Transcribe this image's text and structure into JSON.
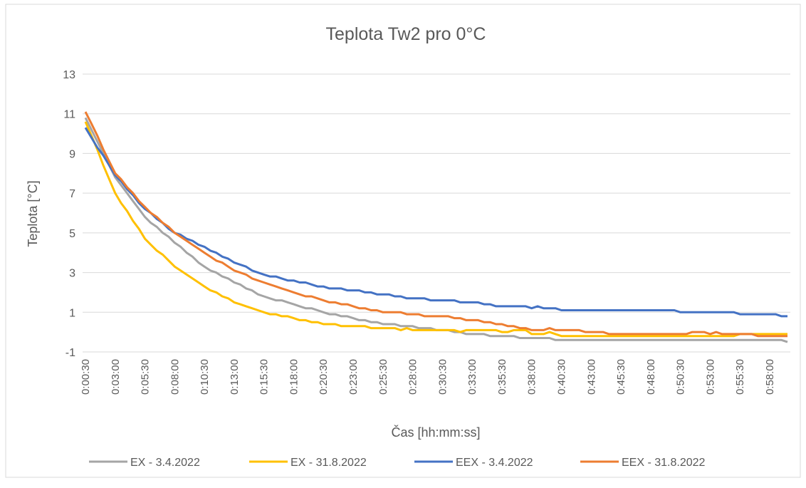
{
  "chart_data": {
    "type": "line",
    "title": "Teplota Tw2 pro  0°C",
    "x_label": "Čas [hh:mm:ss]",
    "y_label": "Teplota [°C]",
    "categories": [
      "0:00:30",
      null,
      null,
      null,
      null,
      "0:03:00",
      null,
      null,
      null,
      null,
      "0:05:30",
      null,
      null,
      null,
      null,
      "0:08:00",
      null,
      null,
      null,
      null,
      "0:10:30",
      null,
      null,
      null,
      null,
      "0:13:00",
      null,
      null,
      null,
      null,
      "0:15:30",
      null,
      null,
      null,
      null,
      "0:18:00",
      null,
      null,
      null,
      null,
      "0:20:30",
      null,
      null,
      null,
      null,
      "0:23:00",
      null,
      null,
      null,
      null,
      "0:25:30",
      null,
      null,
      null,
      null,
      "0:28:00",
      null,
      null,
      null,
      null,
      "0:30:30",
      null,
      null,
      null,
      null,
      "0:33:00",
      null,
      null,
      null,
      null,
      "0:35:30",
      null,
      null,
      null,
      null,
      "0:38:00",
      null,
      null,
      null,
      null,
      "0:40:30",
      null,
      null,
      null,
      null,
      "0:43:00",
      null,
      null,
      null,
      null,
      "0:45:30",
      null,
      null,
      null,
      null,
      "0:48:00",
      null,
      null,
      null,
      null,
      "0:50:30",
      null,
      null,
      null,
      null,
      "0:53:00",
      null,
      null,
      null,
      null,
      "0:55:30",
      null,
      null,
      null,
      null,
      "0:58:00",
      null,
      null,
      null
    ],
    "series": [
      {
        "name": "EX - 3.4.2022",
        "color": "#a5a5a5",
        "values": [
          10.8,
          10.2,
          9.6,
          9.0,
          8.4,
          7.8,
          7.4,
          7.0,
          6.6,
          6.2,
          5.8,
          5.5,
          5.3,
          5.0,
          4.8,
          4.5,
          4.3,
          4.0,
          3.8,
          3.5,
          3.3,
          3.1,
          3.0,
          2.8,
          2.7,
          2.5,
          2.4,
          2.2,
          2.1,
          1.9,
          1.8,
          1.7,
          1.6,
          1.6,
          1.5,
          1.4,
          1.3,
          1.2,
          1.2,
          1.1,
          1.0,
          0.9,
          0.9,
          0.8,
          0.8,
          0.7,
          0.6,
          0.6,
          0.5,
          0.5,
          0.4,
          0.4,
          0.4,
          0.3,
          0.3,
          0.3,
          0.2,
          0.2,
          0.2,
          0.1,
          0.1,
          0.1,
          0.0,
          0.0,
          -0.1,
          -0.1,
          -0.1,
          -0.1,
          -0.2,
          -0.2,
          -0.2,
          -0.2,
          -0.2,
          -0.3,
          -0.3,
          -0.3,
          -0.3,
          -0.3,
          -0.3,
          -0.4,
          -0.4,
          -0.4,
          -0.4,
          -0.4,
          -0.4,
          -0.4,
          -0.4,
          -0.4,
          -0.4,
          -0.4,
          -0.4,
          -0.4,
          -0.4,
          -0.4,
          -0.4,
          -0.4,
          -0.4,
          -0.4,
          -0.4,
          -0.4,
          -0.4,
          -0.4,
          -0.4,
          -0.4,
          -0.4,
          -0.4,
          -0.4,
          -0.4,
          -0.4,
          -0.4,
          -0.4,
          -0.4,
          -0.4,
          -0.4,
          -0.4,
          -0.4,
          -0.4,
          -0.4,
          -0.5
        ]
      },
      {
        "name": "EX - 31.8.2022",
        "color": "#ffc000",
        "values": [
          10.6,
          9.9,
          9.2,
          8.4,
          7.7,
          7.0,
          6.5,
          6.1,
          5.6,
          5.2,
          4.7,
          4.4,
          4.1,
          3.9,
          3.6,
          3.3,
          3.1,
          2.9,
          2.7,
          2.5,
          2.3,
          2.1,
          2.0,
          1.8,
          1.7,
          1.5,
          1.4,
          1.3,
          1.2,
          1.1,
          1.0,
          0.9,
          0.9,
          0.8,
          0.8,
          0.7,
          0.6,
          0.6,
          0.5,
          0.5,
          0.4,
          0.4,
          0.4,
          0.3,
          0.3,
          0.3,
          0.3,
          0.3,
          0.2,
          0.2,
          0.2,
          0.2,
          0.2,
          0.1,
          0.2,
          0.1,
          0.1,
          0.1,
          0.1,
          0.1,
          0.1,
          0.1,
          0.1,
          0.0,
          0.1,
          0.1,
          0.1,
          0.1,
          0.1,
          0.1,
          0.0,
          0.0,
          0.1,
          0.1,
          0.1,
          -0.1,
          -0.1,
          -0.1,
          0.0,
          -0.1,
          -0.2,
          -0.2,
          -0.2,
          -0.2,
          -0.2,
          -0.2,
          -0.2,
          -0.2,
          -0.2,
          -0.2,
          -0.2,
          -0.2,
          -0.2,
          -0.2,
          -0.2,
          -0.2,
          -0.2,
          -0.2,
          -0.2,
          -0.2,
          -0.2,
          -0.2,
          -0.2,
          -0.2,
          -0.2,
          -0.2,
          -0.2,
          -0.2,
          -0.2,
          -0.2,
          -0.1,
          -0.1,
          -0.1,
          -0.1,
          -0.1,
          -0.1,
          -0.1,
          -0.1,
          -0.1
        ]
      },
      {
        "name": "EEX - 3.4.2022",
        "color": "#4472c4",
        "values": [
          10.3,
          9.8,
          9.3,
          8.9,
          8.4,
          7.9,
          7.6,
          7.2,
          6.9,
          6.5,
          6.2,
          6.0,
          5.7,
          5.5,
          5.2,
          5.0,
          4.9,
          4.7,
          4.6,
          4.4,
          4.3,
          4.1,
          4.0,
          3.8,
          3.7,
          3.5,
          3.4,
          3.3,
          3.1,
          3.0,
          2.9,
          2.8,
          2.8,
          2.7,
          2.6,
          2.6,
          2.5,
          2.5,
          2.4,
          2.3,
          2.3,
          2.2,
          2.2,
          2.2,
          2.1,
          2.1,
          2.1,
          2.0,
          2.0,
          1.9,
          1.9,
          1.9,
          1.8,
          1.8,
          1.7,
          1.7,
          1.7,
          1.7,
          1.6,
          1.6,
          1.6,
          1.6,
          1.6,
          1.5,
          1.5,
          1.5,
          1.5,
          1.4,
          1.4,
          1.3,
          1.3,
          1.3,
          1.3,
          1.3,
          1.3,
          1.2,
          1.3,
          1.2,
          1.2,
          1.2,
          1.1,
          1.1,
          1.1,
          1.1,
          1.1,
          1.1,
          1.1,
          1.1,
          1.1,
          1.1,
          1.1,
          1.1,
          1.1,
          1.1,
          1.1,
          1.1,
          1.1,
          1.1,
          1.1,
          1.1,
          1.0,
          1.0,
          1.0,
          1.0,
          1.0,
          1.0,
          1.0,
          1.0,
          1.0,
          1.0,
          0.9,
          0.9,
          0.9,
          0.9,
          0.9,
          0.9,
          0.9,
          0.8,
          0.8
        ]
      },
      {
        "name": "EEX - 31.8.2022",
        "color": "#ed7d31",
        "values": [
          11.1,
          10.5,
          9.9,
          9.2,
          8.6,
          8.0,
          7.7,
          7.3,
          7.0,
          6.6,
          6.3,
          6.0,
          5.8,
          5.5,
          5.3,
          5.0,
          4.8,
          4.6,
          4.4,
          4.2,
          4.0,
          3.8,
          3.6,
          3.5,
          3.3,
          3.1,
          3.0,
          2.9,
          2.7,
          2.6,
          2.5,
          2.4,
          2.3,
          2.2,
          2.1,
          2.0,
          1.9,
          1.8,
          1.8,
          1.7,
          1.6,
          1.5,
          1.5,
          1.4,
          1.4,
          1.3,
          1.2,
          1.2,
          1.1,
          1.1,
          1.0,
          1.0,
          1.0,
          1.0,
          0.9,
          0.9,
          0.9,
          0.8,
          0.8,
          0.8,
          0.8,
          0.8,
          0.7,
          0.7,
          0.6,
          0.6,
          0.6,
          0.5,
          0.5,
          0.4,
          0.4,
          0.3,
          0.3,
          0.2,
          0.2,
          0.1,
          0.1,
          0.1,
          0.2,
          0.1,
          0.1,
          0.1,
          0.1,
          0.1,
          0.0,
          0.0,
          0.0,
          0.0,
          -0.1,
          -0.1,
          -0.1,
          -0.1,
          -0.1,
          -0.1,
          -0.1,
          -0.1,
          -0.1,
          -0.1,
          -0.1,
          -0.1,
          -0.1,
          -0.1,
          0.0,
          0.0,
          0.0,
          -0.1,
          0.0,
          -0.1,
          -0.1,
          -0.1,
          -0.1,
          -0.1,
          -0.1,
          -0.2,
          -0.2,
          -0.2,
          -0.2,
          -0.2,
          -0.2
        ]
      }
    ],
    "ylim": [
      -1,
      13
    ],
    "yticks": [
      -1,
      1,
      3,
      5,
      7,
      9,
      11,
      13
    ],
    "grid": true,
    "legend": "bottom"
  }
}
